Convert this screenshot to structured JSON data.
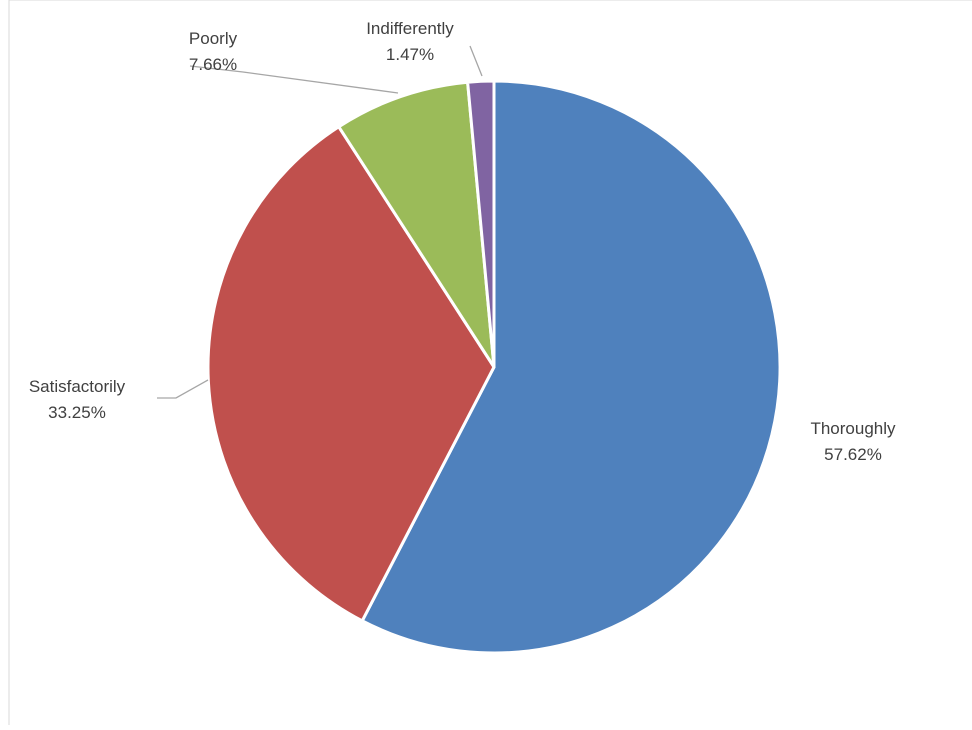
{
  "chart_data": {
    "type": "pie",
    "title": "",
    "slices": [
      {
        "label": "Thoroughly",
        "value": 57.62,
        "value_label": "57.62%",
        "color": "#4F81BD"
      },
      {
        "label": "Satisfactorily",
        "value": 33.25,
        "value_label": "33.25%",
        "color": "#C0504D"
      },
      {
        "label": "Poorly",
        "value": 7.66,
        "value_label": "7.66%",
        "color": "#9BBB59"
      },
      {
        "label": "Indifferently",
        "value": 1.47,
        "value_label": "1.47%",
        "color": "#8064A2"
      }
    ],
    "start": "12 o'clock, clockwise",
    "legend": "none",
    "data_labels": "category and percentage"
  },
  "colors": {
    "border": "#D9D9D9",
    "leader_line": "#A6A6A6",
    "label_text": "#404040",
    "slice_separator": "#FFFFFF"
  }
}
